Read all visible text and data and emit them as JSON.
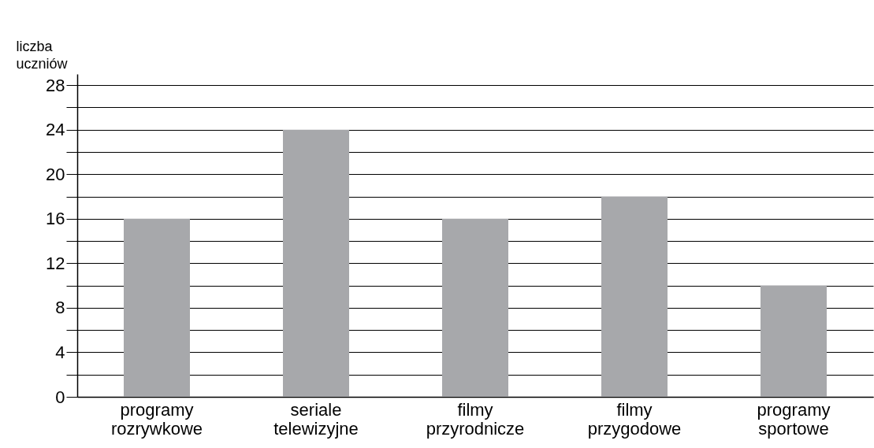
{
  "chart_data": {
    "type": "bar",
    "ylabel": "liczba uczniów",
    "categories": [
      "programy rozrywkowe",
      "seriale telewizyjne",
      "filmy przyrodnicze",
      "filmy przygodowe",
      "programy sportowe"
    ],
    "values": [
      16,
      24,
      16,
      18,
      10
    ],
    "color": "#a7a8ab",
    "ylim": [
      0,
      29
    ],
    "yticks": [
      0,
      {
        "value": 2,
        "label": null
      },
      4,
      {
        "value": 6,
        "label": null
      },
      8,
      {
        "value": 10,
        "label": null
      },
      12,
      {
        "value": 14,
        "label": null
      },
      16,
      {
        "value": 18,
        "label": null
      },
      20,
      {
        "value": 22,
        "label": null
      },
      24,
      {
        "value": 26,
        "label": null
      },
      28
    ],
    "grid": true
  }
}
